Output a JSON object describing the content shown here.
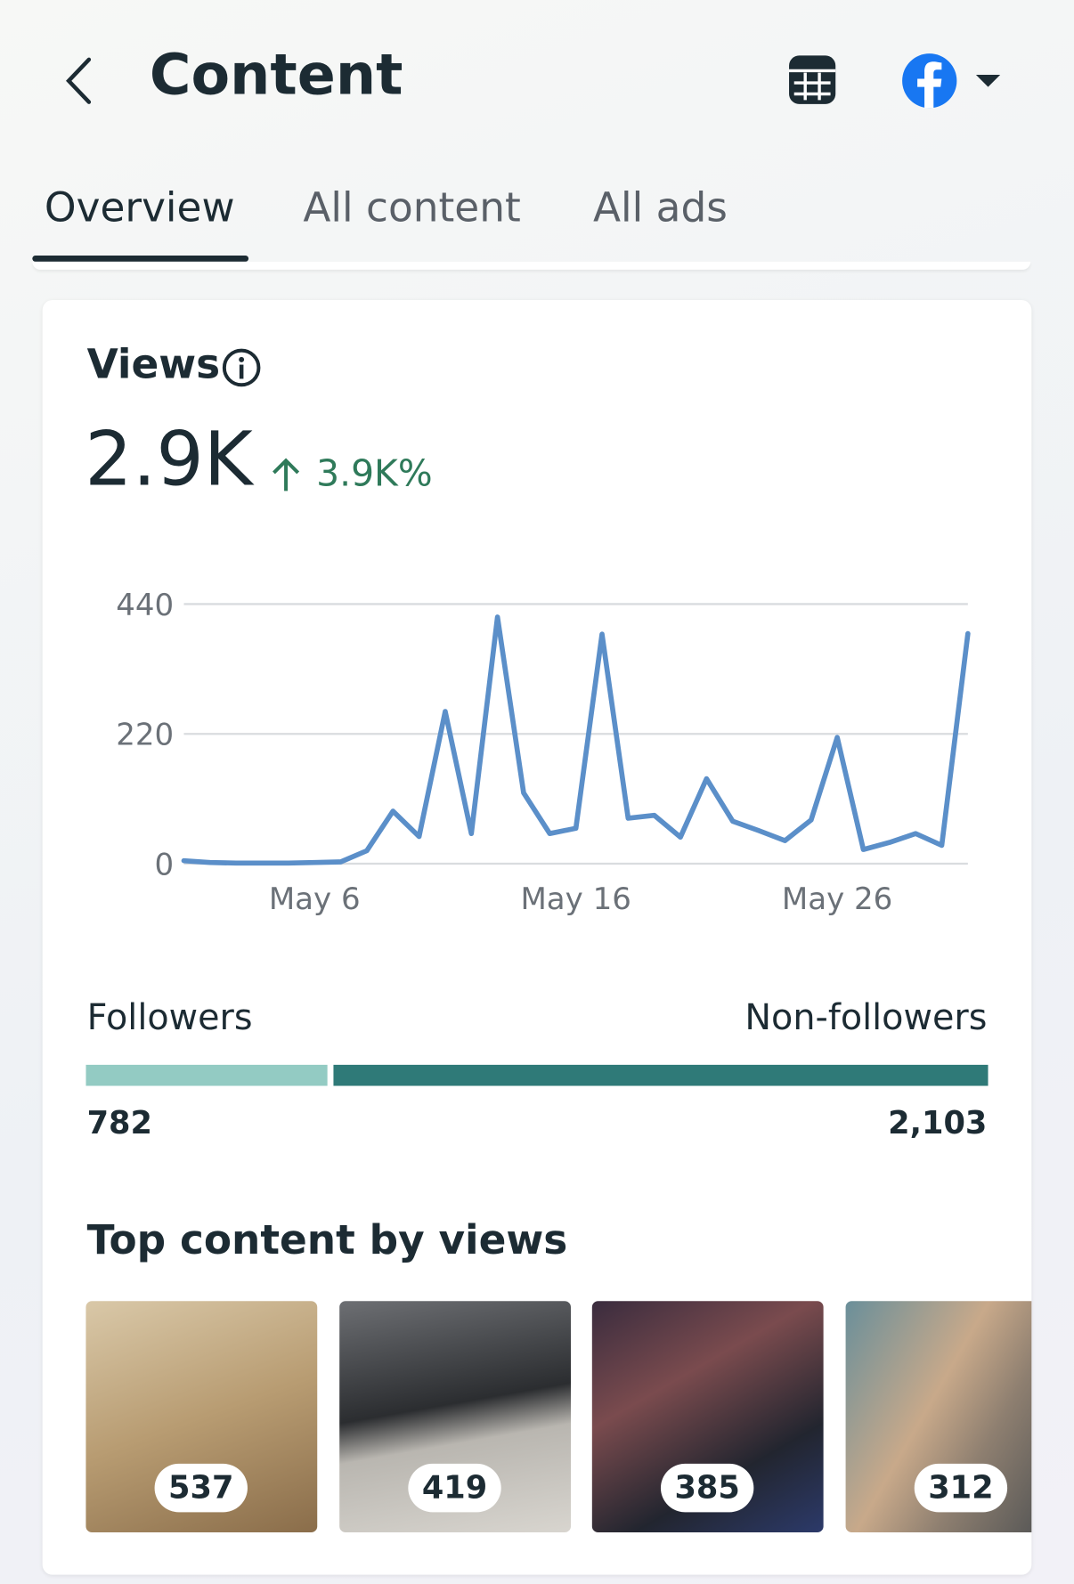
{
  "header": {
    "title": "Content"
  },
  "tabs": [
    "Overview",
    "All content",
    "All ads"
  ],
  "views": {
    "title": "Views",
    "total": "2.9K",
    "change": "3.9K%"
  },
  "chart_data": {
    "type": "line",
    "categories": [
      null,
      null,
      null,
      null,
      null,
      "May 6",
      null,
      null,
      null,
      null,
      null,
      null,
      null,
      null,
      null,
      "May 16",
      null,
      null,
      null,
      null,
      null,
      null,
      null,
      null,
      null,
      "May 26",
      null,
      null,
      null,
      null,
      null
    ],
    "values": [
      5,
      2,
      1,
      1,
      1,
      2,
      3,
      22,
      89,
      46,
      258,
      51,
      418,
      120,
      51,
      60,
      389,
      77,
      82,
      45,
      144,
      72,
      56,
      39,
      74,
      214,
      24,
      36,
      51,
      31,
      390
    ],
    "color": "#5b8fc9",
    "ylim": [
      0,
      440
    ],
    "yticks": [
      0,
      220,
      440
    ],
    "grid": true
  },
  "audience": {
    "labels": [
      "Followers",
      "Non-followers"
    ],
    "values": [
      782,
      2103
    ],
    "value_labels": [
      "782",
      "2,103"
    ],
    "colors": [
      "#93cbc3",
      "#2f7a78"
    ]
  },
  "top_content": {
    "title": "Top content by views",
    "items": [
      "537",
      "419",
      "385",
      "312"
    ]
  }
}
